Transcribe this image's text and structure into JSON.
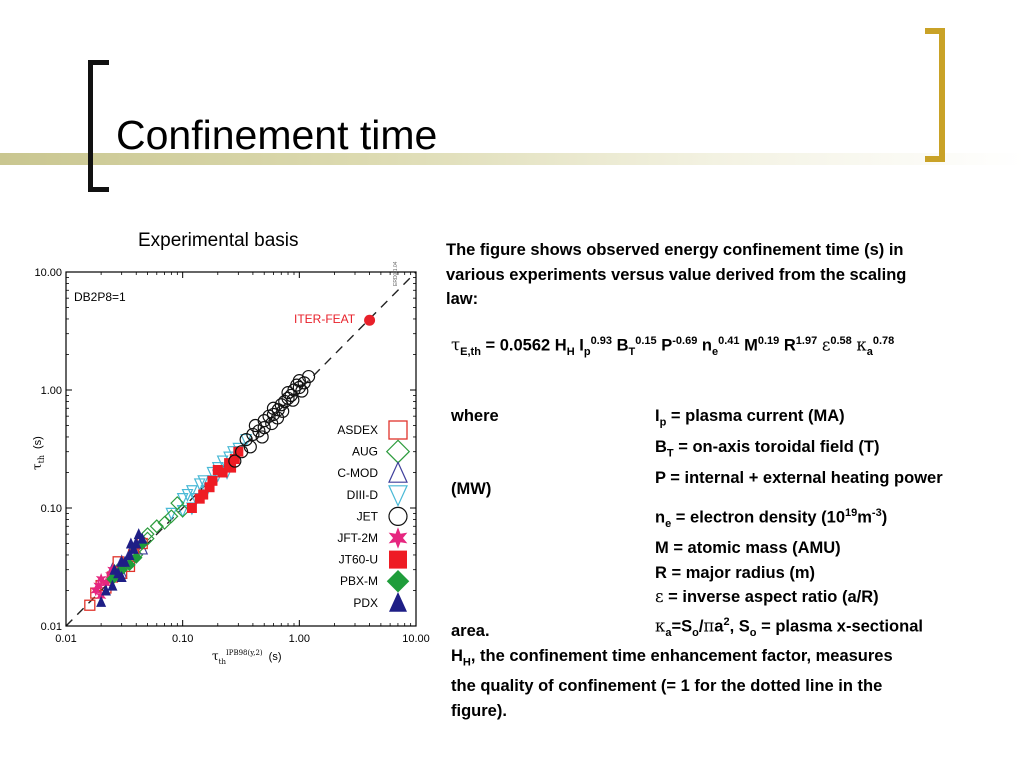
{
  "slide": {
    "title": "Confinement time",
    "subtitle": "Experimental basis",
    "intro": [
      "The figure shows observed energy confinement time (s) in",
      "various experiments versus value derived from the scaling",
      "law:"
    ],
    "formula": {
      "tau": "τ",
      "tau_sub": "E,th",
      "coef": " = 0.0562 H",
      "hh_sub": "H",
      "ip": " I",
      "ip_sub": "p",
      "ip_exp": "0.93",
      "bt": " B",
      "bt_sub": "T",
      "bt_exp": "0.15",
      "p": " P",
      "p_exp": "-0.69",
      "ne": " n",
      "ne_sub": "e",
      "ne_exp": "0.41",
      "m": " M",
      "m_exp": "0.19",
      "r": " R",
      "r_exp": "1.97",
      "eps": "ε",
      "eps_exp": "0.58",
      "kappa": "κ",
      "kappa_sub": "a",
      "kappa_exp": "0.78"
    },
    "where_label": "where",
    "defs": {
      "ip_a": "I",
      "ip_b": "p",
      "ip_c": " = plasma current (MA)",
      "bt_a": "B",
      "bt_b": "T",
      "bt_c": " = on-axis toroidal field (T)",
      "p_line": "P = internal + external heating power",
      "p_cont": "(MW)",
      "ne_a": "n",
      "ne_b": "e",
      "ne_c": " = electron density (10",
      "ne_d": "19",
      "ne_e": "m",
      "ne_f": "-3",
      "ne_g": ")",
      "m_line": "M = atomic mass (AMU)",
      "r_line": "R = major radius (m)",
      "eps_a": "ε",
      "eps_b": " = inverse aspect ratio (a/R)",
      "k_a": "κ",
      "k_b": "a",
      "k_c": "=S",
      "k_d": "o",
      "k_e": "/",
      "k_f": "π",
      "k_g": "a",
      "k_h": "2",
      "k_i": ", S",
      "k_j": "o",
      "k_k": " = plasma x-sectional",
      "k_cont": "area."
    },
    "hh": {
      "h": "H",
      "h_sub": "H",
      "l1": ", the confinement time enhancement factor, measures",
      "l2": "the quality of confinement (= 1 for the dotted line in the",
      "l3": "figure)."
    }
  },
  "figure": {
    "database_label": "DB2P8=1",
    "stamp": "ERD0.1.04",
    "iter_label": "ITER-FEAT",
    "y_label": "τ",
    "y_label_sub": "th",
    "y_label_unit": "(s)",
    "x_label": "τ",
    "x_label_sub": "th",
    "x_label_sup": "IPB98(y,2)",
    "x_label_unit": "(s)",
    "x_ticks": [
      "0.01",
      "0.10",
      "1.00",
      "10.00"
    ],
    "y_ticks": [
      "0.01",
      "0.10",
      "1.00",
      "10.00"
    ],
    "legend": [
      "ASDEX",
      "AUG",
      "C-MOD",
      "DIII-D",
      "JET",
      "JFT-2M",
      "JT60-U",
      "PBX-M",
      "PDX"
    ]
  },
  "chart_data": {
    "type": "scatter",
    "xscale": "log",
    "yscale": "log",
    "xlim": [
      0.01,
      10
    ],
    "ylim": [
      0.01,
      10
    ],
    "grid": false,
    "legend_position": "right",
    "reference_line": "y = x (dashed)",
    "colors": {
      "ASDEX": "#e0332b",
      "AUG": "#2d9c3e",
      "C-MOD": "#3f3f9c",
      "DIII-D": "#49b9d6",
      "JET": "#111111",
      "JFT-2M": "#e6267f",
      "JT60-U": "#ee1c24",
      "PBX-M": "#1f9d3b",
      "PDX": "#1e1e86",
      "ITER-FEAT": "#e8202a"
    },
    "iter_point": {
      "x": 4.0,
      "y": 3.9
    },
    "series": [
      {
        "name": "ASDEX",
        "points": [
          [
            0.016,
            0.015
          ],
          [
            0.018,
            0.019
          ],
          [
            0.022,
            0.021
          ],
          [
            0.025,
            0.026
          ],
          [
            0.03,
            0.028
          ],
          [
            0.035,
            0.032
          ],
          [
            0.038,
            0.04
          ],
          [
            0.045,
            0.05
          ],
          [
            0.028,
            0.035
          ],
          [
            0.02,
            0.022
          ]
        ]
      },
      {
        "name": "AUG",
        "points": [
          [
            0.03,
            0.032
          ],
          [
            0.04,
            0.045
          ],
          [
            0.05,
            0.06
          ],
          [
            0.06,
            0.07
          ],
          [
            0.08,
            0.085
          ],
          [
            0.07,
            0.075
          ],
          [
            0.05,
            0.055
          ],
          [
            0.09,
            0.11
          ],
          [
            0.04,
            0.04
          ],
          [
            0.1,
            0.095
          ]
        ]
      },
      {
        "name": "C-MOD",
        "points": [
          [
            0.025,
            0.03
          ],
          [
            0.03,
            0.035
          ],
          [
            0.035,
            0.04
          ],
          [
            0.04,
            0.05
          ],
          [
            0.03,
            0.028
          ],
          [
            0.045,
            0.045
          ]
        ]
      },
      {
        "name": "DIII-D",
        "points": [
          [
            0.08,
            0.09
          ],
          [
            0.1,
            0.12
          ],
          [
            0.12,
            0.14
          ],
          [
            0.15,
            0.17
          ],
          [
            0.18,
            0.2
          ],
          [
            0.2,
            0.22
          ],
          [
            0.25,
            0.27
          ],
          [
            0.3,
            0.32
          ],
          [
            0.13,
            0.12
          ],
          [
            0.16,
            0.14
          ],
          [
            0.22,
            0.25
          ],
          [
            0.1,
            0.095
          ],
          [
            0.14,
            0.16
          ],
          [
            0.27,
            0.3
          ],
          [
            0.35,
            0.38
          ],
          [
            0.12,
            0.1
          ],
          [
            0.18,
            0.17
          ],
          [
            0.24,
            0.2
          ],
          [
            0.2,
            0.19
          ],
          [
            0.11,
            0.13
          ]
        ]
      },
      {
        "name": "JET",
        "points": [
          [
            0.28,
            0.25
          ],
          [
            0.32,
            0.3
          ],
          [
            0.35,
            0.38
          ],
          [
            0.4,
            0.42
          ],
          [
            0.42,
            0.5
          ],
          [
            0.45,
            0.45
          ],
          [
            0.5,
            0.55
          ],
          [
            0.5,
            0.48
          ],
          [
            0.55,
            0.6
          ],
          [
            0.6,
            0.62
          ],
          [
            0.6,
            0.7
          ],
          [
            0.65,
            0.58
          ],
          [
            0.7,
            0.75
          ],
          [
            0.75,
            0.8
          ],
          [
            0.8,
            0.85
          ],
          [
            0.8,
            0.95
          ],
          [
            0.85,
            0.9
          ],
          [
            0.9,
            1.0
          ],
          [
            0.95,
            1.1
          ],
          [
            1.0,
            1.2
          ],
          [
            1.0,
            1.05
          ],
          [
            1.1,
            1.15
          ],
          [
            1.2,
            1.3
          ],
          [
            0.38,
            0.33
          ],
          [
            0.48,
            0.4
          ],
          [
            0.58,
            0.52
          ],
          [
            0.66,
            0.68
          ],
          [
            0.72,
            0.66
          ],
          [
            0.88,
            0.82
          ],
          [
            1.05,
            0.98
          ]
        ]
      },
      {
        "name": "JFT-2M",
        "points": [
          [
            0.018,
            0.02
          ],
          [
            0.02,
            0.025
          ],
          [
            0.022,
            0.023
          ],
          [
            0.025,
            0.03
          ],
          [
            0.02,
            0.018
          ],
          [
            0.024,
            0.027
          ],
          [
            0.019,
            0.022
          ]
        ]
      },
      {
        "name": "JT60-U",
        "points": [
          [
            0.12,
            0.1
          ],
          [
            0.15,
            0.13
          ],
          [
            0.18,
            0.17
          ],
          [
            0.2,
            0.21
          ],
          [
            0.25,
            0.24
          ],
          [
            0.28,
            0.26
          ],
          [
            0.3,
            0.3
          ],
          [
            0.14,
            0.12
          ],
          [
            0.22,
            0.2
          ],
          [
            0.17,
            0.15
          ],
          [
            0.26,
            0.22
          ]
        ]
      },
      {
        "name": "PBX-M",
        "points": [
          [
            0.025,
            0.025
          ],
          [
            0.03,
            0.03
          ],
          [
            0.035,
            0.033
          ],
          [
            0.04,
            0.038
          ],
          [
            0.045,
            0.05
          ]
        ]
      },
      {
        "name": "PDX",
        "points": [
          [
            0.02,
            0.016
          ],
          [
            0.022,
            0.02
          ],
          [
            0.025,
            0.022
          ],
          [
            0.028,
            0.028
          ],
          [
            0.03,
            0.026
          ],
          [
            0.032,
            0.035
          ],
          [
            0.035,
            0.04
          ],
          [
            0.038,
            0.045
          ],
          [
            0.04,
            0.05
          ],
          [
            0.042,
            0.06
          ],
          [
            0.045,
            0.055
          ],
          [
            0.036,
            0.05
          ],
          [
            0.03,
            0.035
          ],
          [
            0.026,
            0.03
          ]
        ]
      }
    ]
  }
}
